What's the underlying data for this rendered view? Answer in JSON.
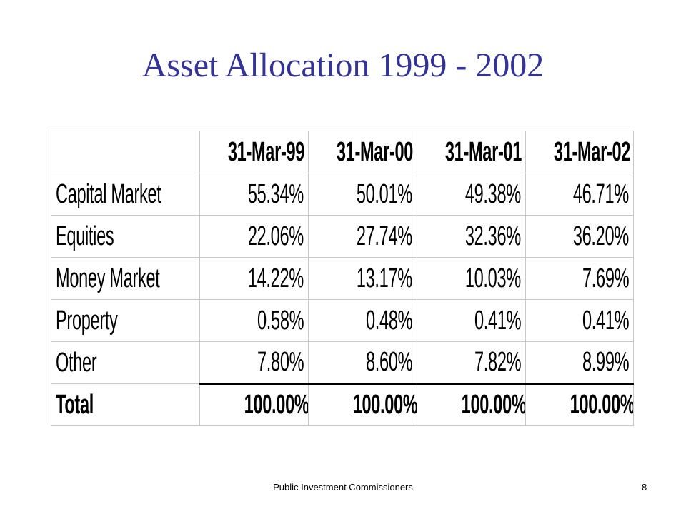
{
  "slide": {
    "title": "Asset Allocation 1999 - 2002"
  },
  "table": {
    "headers": [
      "",
      "31-Mar-99",
      "31-Mar-00",
      "31-Mar-01",
      "31-Mar-02"
    ],
    "rows": [
      {
        "label": "Capital Market",
        "values": [
          "55.34%",
          "50.01%",
          "49.38%",
          "46.71%"
        ]
      },
      {
        "label": "Equities",
        "values": [
          "22.06%",
          "27.74%",
          "32.36%",
          "36.20%"
        ]
      },
      {
        "label": "Money Market",
        "values": [
          "14.22%",
          "13.17%",
          "10.03%",
          "7.69%"
        ]
      },
      {
        "label": "Property",
        "values": [
          "0.58%",
          "0.48%",
          "0.41%",
          "0.41%"
        ]
      },
      {
        "label": "Other",
        "values": [
          "7.80%",
          "8.60%",
          "7.82%",
          "8.99%"
        ]
      }
    ],
    "total": {
      "label": "Total",
      "values": [
        "100.00%",
        "100.00%",
        "100.00%",
        "100.00%"
      ]
    }
  },
  "footer": {
    "organization": "Public Investment Commissioners",
    "page_number": "8"
  },
  "colors": {
    "title": "#333399",
    "text": "#000000",
    "background": "#ffffff"
  }
}
